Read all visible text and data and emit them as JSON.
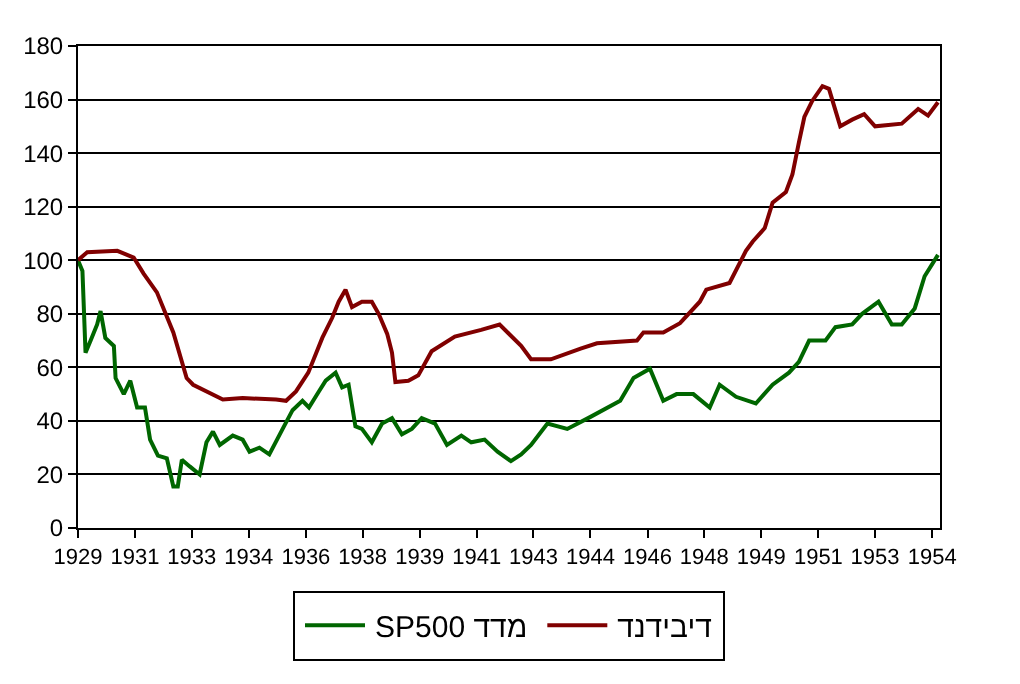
{
  "chart_data": {
    "type": "line",
    "xlim": [
      1929.34,
      1954.57
    ],
    "xticks": [
      {
        "value": 1929.34,
        "label": "1929"
      },
      {
        "value": 1931.01,
        "label": "1931"
      },
      {
        "value": 1932.67,
        "label": "1933"
      },
      {
        "value": 1934.34,
        "label": "1934"
      },
      {
        "value": 1936.01,
        "label": "1936"
      },
      {
        "value": 1937.67,
        "label": "1938"
      },
      {
        "value": 1939.34,
        "label": "1939"
      },
      {
        "value": 1941.01,
        "label": "1941"
      },
      {
        "value": 1942.67,
        "label": "1943"
      },
      {
        "value": 1944.34,
        "label": "1944"
      },
      {
        "value": 1946.01,
        "label": "1946"
      },
      {
        "value": 1947.67,
        "label": "1948"
      },
      {
        "value": 1949.34,
        "label": "1949"
      },
      {
        "value": 1951.01,
        "label": "1951"
      },
      {
        "value": 1952.67,
        "label": "1953"
      },
      {
        "value": 1954.34,
        "label": "1954"
      }
    ],
    "ylim": [
      0,
      180
    ],
    "yticks": [
      0,
      20,
      40,
      60,
      80,
      100,
      120,
      140,
      160,
      180
    ],
    "grid": "y",
    "legend": "bottom",
    "marker": "none",
    "line_style": "solid",
    "series": [
      {
        "name": "SP500 מדד",
        "color": "#006600",
        "x": [
          1929.34,
          1929.47,
          1929.56,
          1929.71,
          1929.9,
          1930.0,
          1930.14,
          1930.39,
          1930.44,
          1930.68,
          1930.87,
          1931.07,
          1931.3,
          1931.45,
          1931.68,
          1931.94,
          1932.13,
          1932.26,
          1932.38,
          1932.61,
          1932.9,
          1933.1,
          1933.29,
          1933.49,
          1933.87,
          1934.16,
          1934.36,
          1934.65,
          1934.94,
          1935.33,
          1935.62,
          1935.91,
          1936.1,
          1936.39,
          1936.59,
          1936.88,
          1937.07,
          1937.26,
          1937.46,
          1937.65,
          1937.94,
          1938.24,
          1938.53,
          1938.82,
          1939.11,
          1939.4,
          1939.79,
          1940.14,
          1940.56,
          1940.85,
          1941.24,
          1941.62,
          1942.01,
          1942.31,
          1942.6,
          1943.08,
          1943.66,
          1944.34,
          1945.21,
          1945.6,
          1946.08,
          1946.47,
          1946.86,
          1947.35,
          1947.83,
          1948.12,
          1948.6,
          1949.18,
          1949.67,
          1950.15,
          1950.44,
          1950.74,
          1951.22,
          1951.51,
          1952.0,
          1952.29,
          1952.77,
          1953.16,
          1953.45,
          1953.83,
          1954.12,
          1954.51
        ],
        "values": [
          100,
          96,
          65.5,
          70,
          76,
          81,
          71,
          68,
          56,
          50,
          55,
          45,
          45,
          33,
          27,
          26,
          15.5,
          15.5,
          25.5,
          23,
          20,
          32,
          36,
          31,
          34.5,
          33,
          28.5,
          30,
          27.5,
          37,
          44,
          47.5,
          45,
          51,
          55,
          58,
          52.5,
          53.5,
          38,
          37,
          32,
          39,
          41,
          35,
          37,
          41,
          39,
          31,
          34.5,
          32,
          33,
          28.5,
          25,
          27.5,
          31,
          39,
          37,
          41.5,
          47.5,
          56,
          59.5,
          47.5,
          50,
          50,
          45,
          53.5,
          49,
          46.5,
          53.5,
          58,
          62,
          70,
          70,
          75,
          76,
          80,
          84.5,
          76,
          76,
          82,
          94,
          102
        ]
      },
      {
        "name": "דיבידנד",
        "color": "#800000",
        "x": [
          1929.34,
          1929.61,
          1930.49,
          1930.97,
          1931.26,
          1931.65,
          1932.13,
          1932.52,
          1932.71,
          1933.58,
          1934.16,
          1935.14,
          1935.43,
          1935.72,
          1936.08,
          1936.49,
          1936.78,
          1936.97,
          1937.17,
          1937.36,
          1937.65,
          1937.94,
          1938.14,
          1938.39,
          1938.53,
          1938.63,
          1939.01,
          1939.3,
          1939.69,
          1940.37,
          1941.14,
          1941.68,
          1942.31,
          1942.6,
          1943.18,
          1944.05,
          1944.53,
          1945.7,
          1945.89,
          1946.47,
          1946.96,
          1947.54,
          1947.73,
          1948.41,
          1948.89,
          1949.09,
          1949.44,
          1949.67,
          1950.06,
          1950.25,
          1950.44,
          1950.6,
          1950.83,
          1951.13,
          1951.32,
          1951.65,
          1952.0,
          1952.35,
          1952.67,
          1953.45,
          1953.93,
          1954.22,
          1954.51
        ],
        "values": [
          100,
          103,
          103.5,
          101,
          95,
          88,
          73,
          56,
          53.5,
          48,
          48.5,
          48,
          47.5,
          51,
          58,
          71,
          78.5,
          84.5,
          89,
          82.5,
          84.5,
          84.5,
          80,
          72.5,
          65.5,
          54.5,
          55,
          57,
          66,
          71.5,
          74,
          76,
          68,
          63,
          63,
          67,
          69,
          70,
          73,
          73,
          76.5,
          84.5,
          89,
          91.5,
          103.5,
          107,
          112,
          121.5,
          125.5,
          132,
          144,
          153.5,
          159.5,
          165,
          164,
          150,
          152.5,
          154.5,
          150,
          151,
          156.5,
          154,
          159
        ]
      }
    ]
  }
}
